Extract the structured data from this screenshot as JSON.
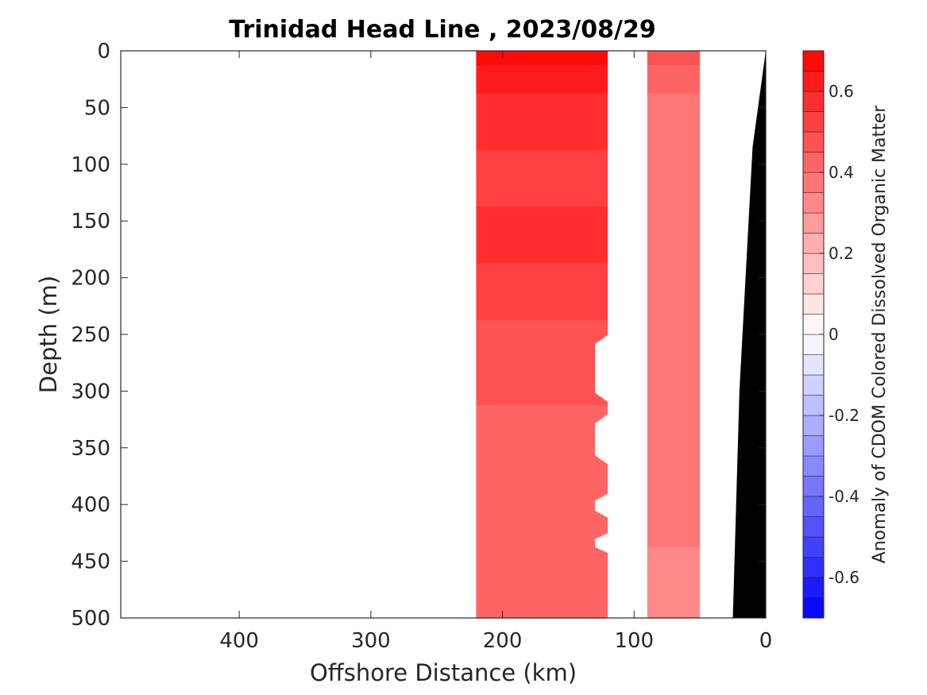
{
  "chart_data": {
    "type": "heatmap",
    "title": "Trinidad Head Line , 2023/08/29",
    "xlabel": "Offshore Distance (km)",
    "ylabel": "Depth (m)",
    "colorbar_label": "Anomaly of CDOM Colored Dissolved Organic Matter",
    "x_reversed": true,
    "y_reversed": true,
    "xlim": [
      0,
      490
    ],
    "ylim": [
      0,
      500
    ],
    "xticks": [
      400,
      300,
      200,
      100,
      0
    ],
    "yticks": [
      0,
      50,
      100,
      150,
      200,
      250,
      300,
      350,
      400,
      450,
      500
    ],
    "clim": [
      -0.7,
      0.7
    ],
    "colorbar_ticks": [
      0.6,
      0.4,
      0.2,
      0,
      -0.2,
      -0.4,
      -0.6
    ],
    "colorbar_levels": 28,
    "colors": {
      "positive": "#ff0000",
      "negative": "#0000ff",
      "zero": "#ffffff",
      "bathymetry": "#000000"
    },
    "sections": [
      {
        "x_start": 220,
        "x_end": 120,
        "depths": [
          0,
          25,
          50,
          75,
          100,
          125,
          150,
          175,
          200,
          225,
          250,
          275,
          300,
          325,
          350,
          375,
          400,
          425,
          450,
          475,
          500
        ],
        "anomaly": [
          0.66,
          0.6,
          0.57,
          0.55,
          0.52,
          0.53,
          0.56,
          0.55,
          0.52,
          0.5,
          0.47,
          0.47,
          0.46,
          0.44,
          0.44,
          0.44,
          0.43,
          0.42,
          0.43,
          0.42,
          0.42
        ]
      },
      {
        "x_start": 90,
        "x_end": 50,
        "depths": [
          0,
          25,
          50,
          75,
          100,
          125,
          150,
          175,
          200,
          225,
          250,
          275,
          300,
          325,
          350,
          375,
          400,
          425,
          450,
          475,
          500
        ],
        "anomaly": [
          0.45,
          0.4,
          0.36,
          0.37,
          0.38,
          0.37,
          0.38,
          0.38,
          0.38,
          0.37,
          0.37,
          0.37,
          0.36,
          0.37,
          0.36,
          0.37,
          0.37,
          0.36,
          0.34,
          0.33,
          0.33
        ]
      }
    ],
    "gap_notches": [
      {
        "depth_top": 250,
        "depth_bottom": 310
      },
      {
        "depth_top": 320,
        "depth_bottom": 365
      },
      {
        "depth_top": 390,
        "depth_bottom": 412
      },
      {
        "depth_top": 425,
        "depth_bottom": 443
      }
    ],
    "bathymetry": [
      {
        "x": 0,
        "depth": 0
      },
      {
        "x": 10,
        "depth": 85
      },
      {
        "x": 20,
        "depth": 300
      },
      {
        "x": 25,
        "depth": 500
      }
    ]
  }
}
